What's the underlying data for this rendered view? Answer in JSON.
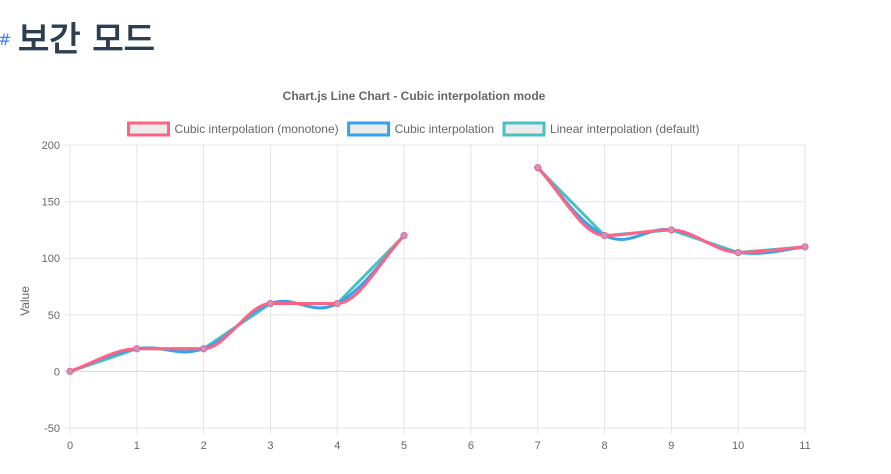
{
  "page": {
    "anchor_icon": "anchor-link-icon",
    "anchor_symbol": "#",
    "heading": "보간 모드"
  },
  "chart_data": {
    "type": "line",
    "title": "Chart.js Line Chart - Cubic interpolation mode",
    "ylabel": "Value",
    "xlabel": "",
    "categories": [
      "0",
      "1",
      "2",
      "3",
      "4",
      "5",
      "6",
      "7",
      "8",
      "9",
      "10",
      "11"
    ],
    "ylim": [
      -50,
      200
    ],
    "yticks": [
      -50,
      0,
      50,
      100,
      150,
      200
    ],
    "grid": true,
    "legend_position": "top",
    "series": [
      {
        "name": "Cubic interpolation (monotone)",
        "color": "#ff6384",
        "fill": "#ececec",
        "curve": "monotone",
        "values": [
          0,
          20,
          20,
          60,
          60,
          120,
          null,
          180,
          120,
          125,
          105,
          110
        ]
      },
      {
        "name": "Cubic interpolation",
        "color": "#36a2eb",
        "fill": "#ececec",
        "curve": "cubic",
        "values": [
          0,
          20,
          20,
          60,
          60,
          120,
          null,
          180,
          120,
          125,
          105,
          110
        ]
      },
      {
        "name": "Linear interpolation (default)",
        "color": "#4bc0c0",
        "fill": "#ececec",
        "curve": "linear",
        "values": [
          0,
          20,
          20,
          60,
          60,
          120,
          null,
          180,
          120,
          125,
          105,
          110
        ]
      }
    ]
  }
}
